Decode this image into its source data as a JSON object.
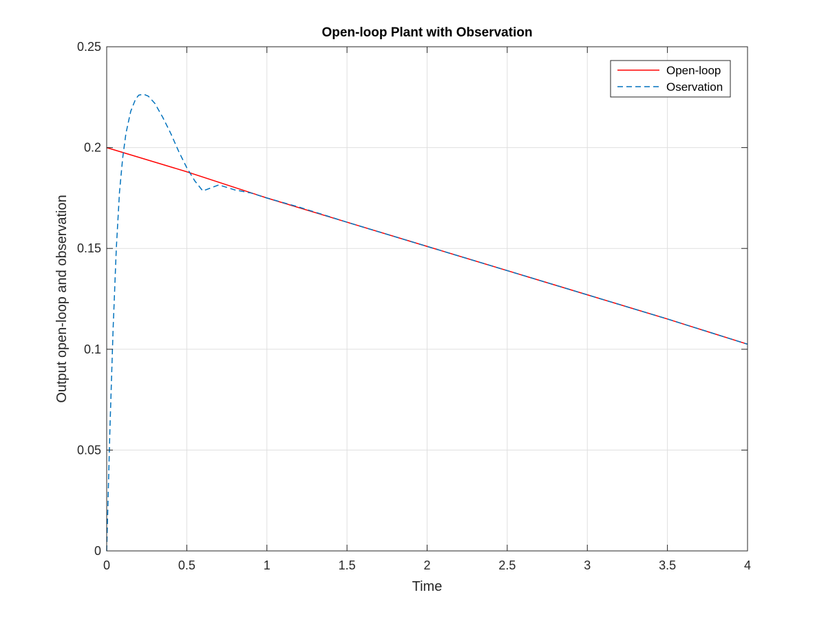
{
  "chart_data": {
    "type": "line",
    "title": "Open-loop Plant with Observation",
    "xlabel": "Time",
    "ylabel": "Output open-loop and observation",
    "xlim": [
      0,
      4
    ],
    "ylim": [
      0,
      0.25
    ],
    "xticks": [
      0,
      0.5,
      1,
      1.5,
      2,
      2.5,
      3,
      3.5,
      4
    ],
    "xtick_labels": [
      "0",
      "0.5",
      "1",
      "1.5",
      "2",
      "2.5",
      "3",
      "3.5",
      "4"
    ],
    "yticks": [
      0,
      0.05,
      0.1,
      0.15,
      0.2,
      0.25
    ],
    "ytick_labels": [
      "0",
      "0.05",
      "0.1",
      "0.15",
      "0.2",
      "0.25"
    ],
    "grid": true,
    "legend_position": "top-right",
    "series": [
      {
        "name": "Open-loop",
        "color": "#ff0000",
        "style": "solid",
        "x": [
          0,
          0.5,
          1,
          1.5,
          2,
          2.5,
          3,
          3.5,
          4
        ],
        "y": [
          0.2,
          0.188,
          0.175,
          0.163,
          0.151,
          0.139,
          0.127,
          0.115,
          0.1025
        ]
      },
      {
        "name": "Oservation",
        "color": "#0072bd",
        "style": "dashed",
        "x": [
          0,
          0.02,
          0.04,
          0.06,
          0.08,
          0.1,
          0.12,
          0.15,
          0.18,
          0.2,
          0.23,
          0.26,
          0.3,
          0.35,
          0.4,
          0.45,
          0.5,
          0.55,
          0.6,
          0.7,
          0.8,
          0.9,
          1.0,
          1.2,
          1.5,
          2,
          2.5,
          3,
          3.5,
          4
        ],
        "y": [
          0,
          0.06,
          0.11,
          0.15,
          0.178,
          0.195,
          0.207,
          0.218,
          0.224,
          0.226,
          0.2265,
          0.2255,
          0.222,
          0.215,
          0.207,
          0.198,
          0.19,
          0.1835,
          0.1785,
          0.1815,
          0.179,
          0.1775,
          0.175,
          0.1705,
          0.163,
          0.151,
          0.139,
          0.127,
          0.115,
          0.1025
        ]
      }
    ]
  }
}
